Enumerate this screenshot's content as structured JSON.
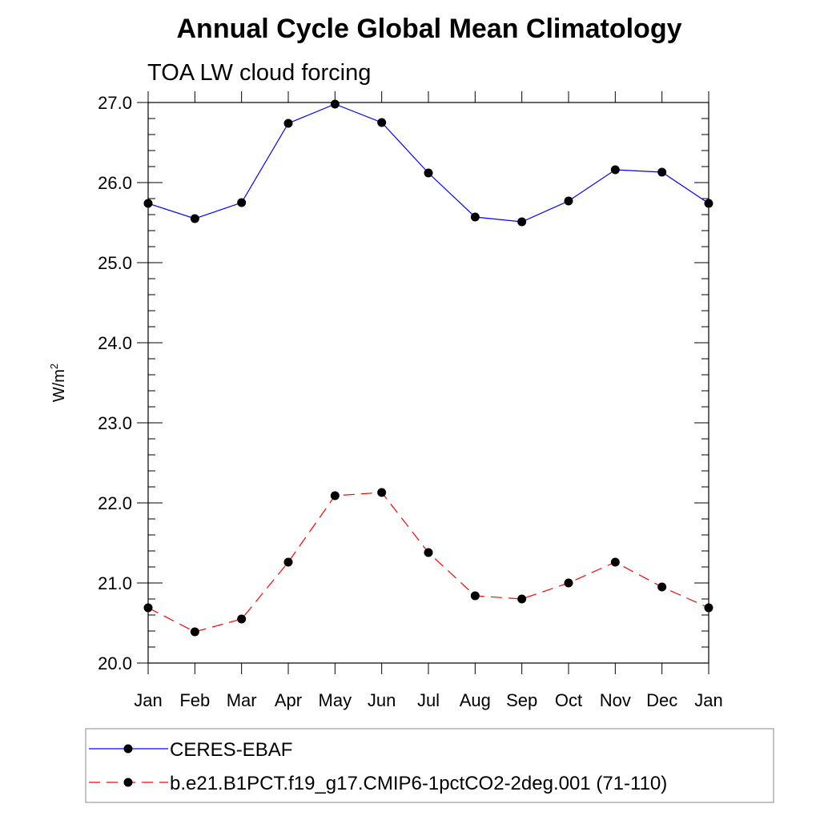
{
  "chart_data": {
    "type": "line",
    "title": "Annual Cycle Global Mean Climatology",
    "subtitle": "TOA LW cloud forcing",
    "xlabel": "",
    "ylabel": "W/m",
    "ylabel_sup": "2",
    "categories": [
      "Jan",
      "Feb",
      "Mar",
      "Apr",
      "May",
      "Jun",
      "Jul",
      "Aug",
      "Sep",
      "Oct",
      "Nov",
      "Dec",
      "Jan"
    ],
    "ylim": [
      20.0,
      27.0
    ],
    "yticks": [
      "20.0",
      "21.0",
      "22.0",
      "23.0",
      "24.0",
      "25.0",
      "26.0",
      "27.0"
    ],
    "legend_position": "bottom",
    "series": [
      {
        "name": "CERES-EBAF",
        "color": "#0000ff",
        "dash": "solid",
        "values": [
          25.74,
          25.55,
          25.75,
          26.74,
          26.98,
          26.75,
          26.12,
          25.57,
          25.51,
          25.77,
          26.16,
          26.13,
          25.74
        ]
      },
      {
        "name": "b.e21.B1PCT.f19_g17.CMIP6-1pctCO2-2deg.001 (71-110)",
        "color": "#ff0000",
        "dash": "dashed",
        "values": [
          20.69,
          20.39,
          20.55,
          21.26,
          22.09,
          22.13,
          21.38,
          20.84,
          20.8,
          21.0,
          21.26,
          20.95,
          20.69
        ]
      }
    ]
  }
}
